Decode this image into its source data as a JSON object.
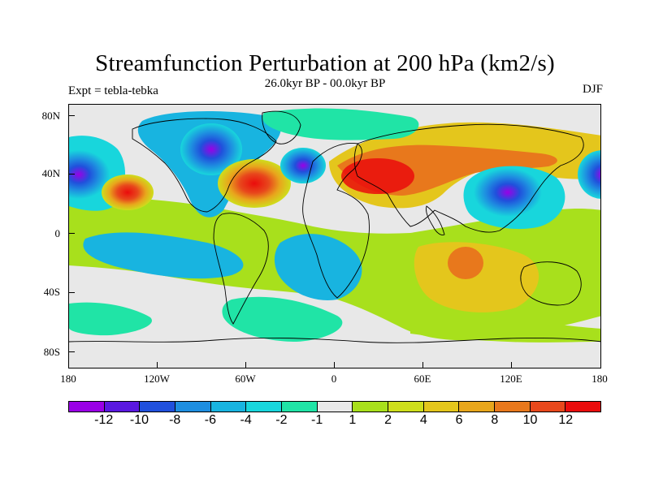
{
  "figure": {
    "title": "Streamfunction Perturbation at 200 hPa (km2/s)",
    "subtitle": "26.0kyr BP - 00.0kyr BP",
    "left_label": "Expt = tebla-tebka",
    "right_label": "DJF"
  },
  "axes": {
    "y_ticks": [
      "80N",
      "40N",
      "0",
      "40S",
      "80S"
    ],
    "x_ticks": [
      "180",
      "120W",
      "60W",
      "0",
      "60E",
      "120E",
      "180"
    ]
  },
  "colorbar": {
    "colors": [
      "#9a00e6",
      "#5a18e0",
      "#2050dc",
      "#1e8ee0",
      "#18b4e0",
      "#18d6dc",
      "#20e4a6",
      "#e8e8e8",
      "#a8e01c",
      "#cede1c",
      "#e4c61c",
      "#e8a61c",
      "#e8781c",
      "#e8481c",
      "#ea0c0c"
    ],
    "labels": [
      "-12",
      "-10",
      "-8",
      "-6",
      "-4",
      "-2",
      "-1",
      "1",
      "2",
      "4",
      "6",
      "8",
      "10",
      "12"
    ]
  },
  "map_colors": {
    "neutral": "#e8e8e8",
    "positive_weak": "#a8e01c",
    "positive_mid": "#e4c61c",
    "positive_strong": "#e8781c",
    "positive_max": "#ea0c0c",
    "negative_weak": "#20e4a6",
    "negative_mid": "#18b4e0",
    "negative_strong": "#2050dc",
    "negative_max": "#9a00e6"
  }
}
